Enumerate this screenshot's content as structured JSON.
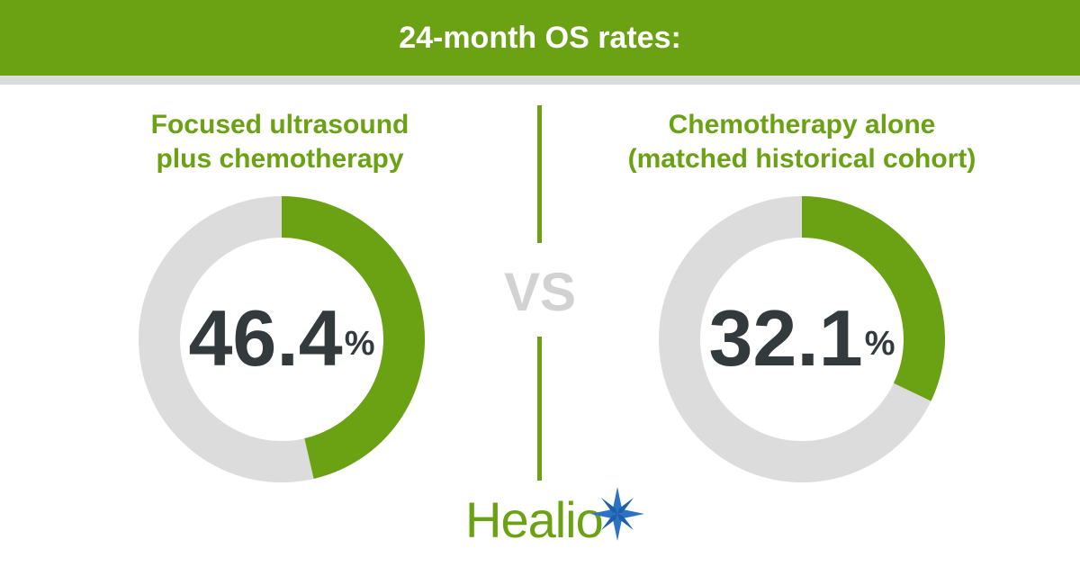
{
  "header": {
    "title": "24-month OS rates:"
  },
  "vs_label": "VS",
  "logo": {
    "text": "Healio",
    "icon": "healio-star-icon"
  },
  "colors": {
    "green": "#6aa213",
    "gray": "#dcdcdc",
    "dark": "#333a3d"
  },
  "chart_data": [
    {
      "type": "pie",
      "title_lines": [
        "Focused ultrasound",
        "plus chemotherapy"
      ],
      "value": 46.4,
      "value_label": "46.4",
      "unit": "%"
    },
    {
      "type": "pie",
      "title_lines": [
        "Chemotherapy alone",
        "(matched historical cohort)"
      ],
      "value": 32.1,
      "value_label": "32.1",
      "unit": "%"
    }
  ]
}
